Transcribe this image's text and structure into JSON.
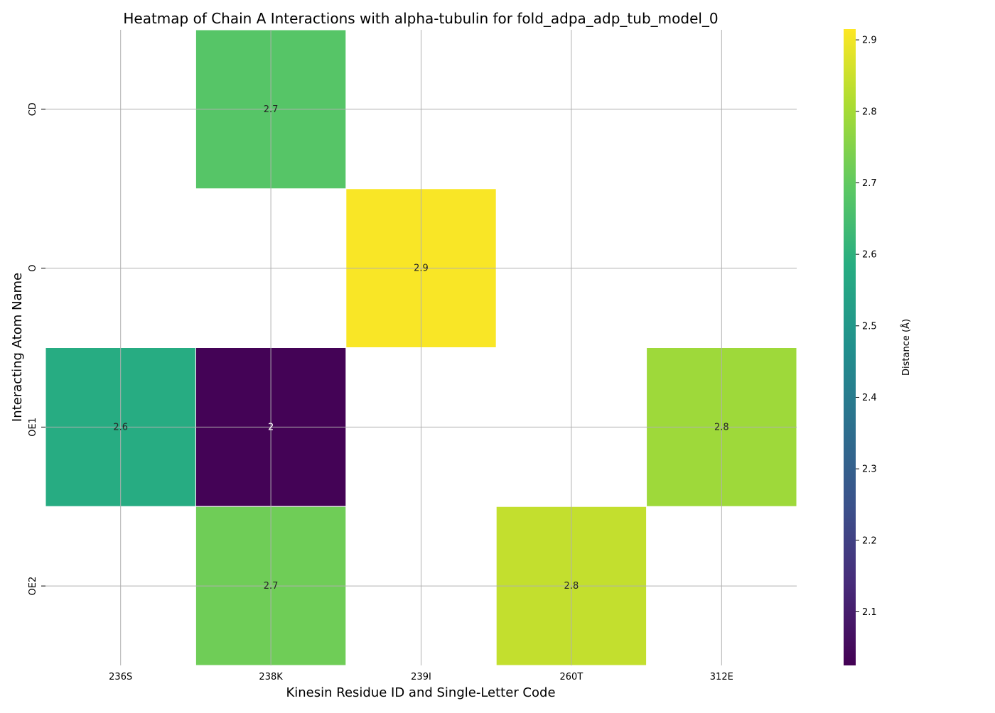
{
  "chart_data": {
    "type": "heatmap",
    "title": "Heatmap of Chain A Interactions with alpha-tubulin for fold_adpa_adp_tub_model_0",
    "xlabel": "Kinesin Residue ID and Single-Letter Code",
    "ylabel": "Interacting Atom Name",
    "x_categories": [
      "236S",
      "238K",
      "239I",
      "260T",
      "312E"
    ],
    "y_categories": [
      "CD",
      "O",
      "OE1",
      "OE2"
    ],
    "cells": [
      {
        "x": "238K",
        "y": "CD",
        "value": 2.68,
        "label": "2.7"
      },
      {
        "x": "239I",
        "y": "O",
        "value": 2.91,
        "label": "2.9"
      },
      {
        "x": "236S",
        "y": "OE1",
        "value": 2.58,
        "label": "2.6"
      },
      {
        "x": "238K",
        "y": "OE1",
        "value": 2.03,
        "label": "2"
      },
      {
        "x": "312E",
        "y": "OE1",
        "value": 2.79,
        "label": "2.8"
      },
      {
        "x": "238K",
        "y": "OE2",
        "value": 2.72,
        "label": "2.7"
      },
      {
        "x": "260T",
        "y": "OE2",
        "value": 2.84,
        "label": "2.8"
      }
    ],
    "colormap": "viridis",
    "colorbar": {
      "label": "Distance (Å)",
      "range": [
        2.025,
        2.915
      ],
      "ticks": [
        2.1,
        2.2,
        2.3,
        2.4,
        2.5,
        2.6,
        2.7,
        2.8,
        2.9
      ],
      "tick_labels": [
        "2.1",
        "2.2",
        "2.3",
        "2.4",
        "2.5",
        "2.6",
        "2.7",
        "2.8",
        "2.9"
      ]
    },
    "grid": true,
    "legend": "colorbar-right"
  }
}
